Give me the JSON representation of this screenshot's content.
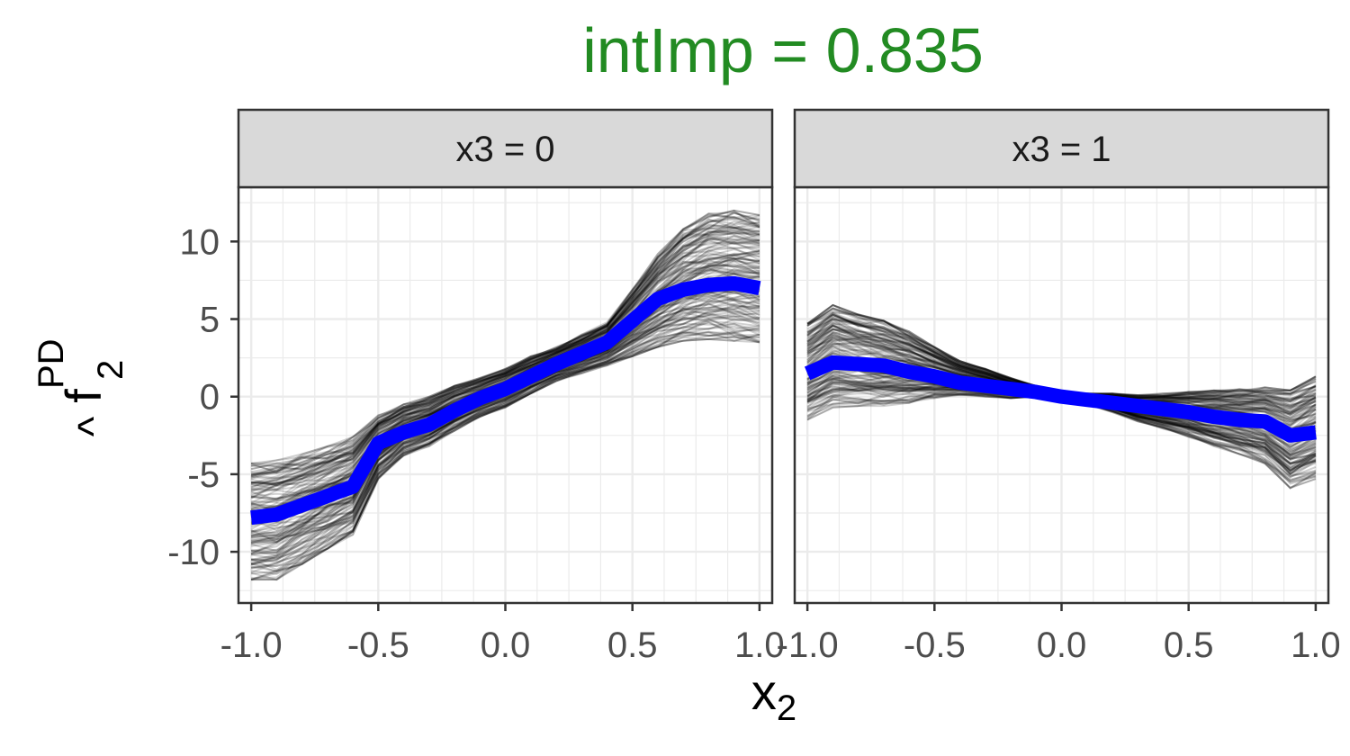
{
  "chart_data": {
    "type": "line",
    "title": "intImp = 0.835",
    "title_color": "#228B22",
    "xlabel_main": "x",
    "xlabel_sub": "2",
    "ylabel_hat": "^",
    "ylabel_main": "f",
    "ylabel_sub": "2",
    "ylabel_sup": "PD",
    "xlim": [
      -1.05,
      1.05
    ],
    "ylim": [
      -13.3,
      13.5
    ],
    "x_ticks": [
      -1.0,
      -0.5,
      0.0,
      0.5,
      1.0
    ],
    "x_tick_labels": [
      "-1.0",
      "-0.5",
      "0.0",
      "0.5",
      "1.0"
    ],
    "y_ticks": [
      -10,
      -5,
      0,
      5,
      10
    ],
    "y_tick_labels": [
      "-10",
      "-5",
      "0",
      "5",
      "10"
    ],
    "grid": true,
    "pd_color": "#0000FF",
    "ice_color": "#000000",
    "panels": [
      {
        "strip": "x3 = 0",
        "series": [
          {
            "type": "pd",
            "x": [
              -1.0,
              -0.9,
              -0.8,
              -0.7,
              -0.6,
              -0.5,
              -0.4,
              -0.3,
              -0.2,
              -0.1,
              0.0,
              0.1,
              0.2,
              0.3,
              0.4,
              0.5,
              0.6,
              0.7,
              0.8,
              0.9,
              1.0
            ],
            "y": [
              -7.8,
              -7.6,
              -7.0,
              -6.4,
              -5.8,
              -3.0,
              -2.3,
              -1.8,
              -0.9,
              -0.1,
              0.5,
              1.3,
              2.1,
              2.8,
              3.5,
              4.9,
              6.3,
              6.9,
              7.2,
              7.3,
              7.0
            ]
          },
          {
            "type": "ice",
            "x": [
              -1.0,
              -0.9,
              -0.8,
              -0.7,
              -0.6,
              -0.5,
              -0.4,
              -0.3,
              -0.2,
              -0.1,
              0.0,
              0.1,
              0.2,
              0.3,
              0.4,
              0.5,
              0.6,
              0.7,
              0.8,
              0.9,
              1.0
            ],
            "ylow": [
              -11.8,
              -11.8,
              -10.8,
              -9.8,
              -8.9,
              -5.3,
              -3.8,
              -3.2,
              -2.2,
              -1.3,
              -0.7,
              0.2,
              1.0,
              1.5,
              2.0,
              2.6,
              3.2,
              3.6,
              3.7,
              3.6,
              3.5
            ],
            "yhigh": [
              -4.3,
              -4.1,
              -3.7,
              -3.2,
              -2.6,
              -1.2,
              -0.5,
              0.0,
              0.7,
              1.2,
              1.8,
              2.6,
              3.2,
              4.0,
              4.8,
              6.9,
              9.2,
              10.8,
              11.8,
              12.0,
              11.7
            ]
          }
        ]
      },
      {
        "strip": "x3 = 1",
        "series": [
          {
            "type": "pd",
            "x": [
              -1.0,
              -0.9,
              -0.8,
              -0.7,
              -0.6,
              -0.5,
              -0.4,
              -0.3,
              -0.2,
              -0.1,
              0.0,
              0.1,
              0.2,
              0.3,
              0.4,
              0.5,
              0.6,
              0.7,
              0.8,
              0.9,
              1.0
            ],
            "y": [
              1.5,
              2.2,
              2.1,
              2.0,
              1.6,
              1.3,
              0.9,
              0.7,
              0.5,
              0.3,
              0.0,
              -0.2,
              -0.4,
              -0.6,
              -0.8,
              -1.0,
              -1.3,
              -1.5,
              -1.6,
              -2.5,
              -2.3
            ]
          },
          {
            "type": "ice",
            "x": [
              -1.0,
              -0.9,
              -0.8,
              -0.7,
              -0.6,
              -0.5,
              -0.4,
              -0.3,
              -0.2,
              -0.1,
              0.0,
              0.1,
              0.2,
              0.3,
              0.4,
              0.5,
              0.6,
              0.7,
              0.8,
              0.9,
              1.0
            ],
            "ylow": [
              -1.5,
              -0.7,
              -0.6,
              -0.6,
              -0.4,
              -0.1,
              0.1,
              0.0,
              -0.1,
              0.0,
              0.0,
              -0.5,
              -1.0,
              -1.6,
              -2.1,
              -2.6,
              -3.2,
              -3.7,
              -4.3,
              -5.9,
              -5.3
            ],
            "yhigh": [
              4.7,
              5.9,
              5.3,
              4.9,
              4.2,
              3.2,
              2.3,
              1.8,
              1.2,
              0.7,
              0.2,
              0.2,
              0.2,
              0.1,
              0.2,
              0.3,
              0.4,
              0.5,
              0.6,
              0.4,
              1.3
            ]
          }
        ]
      }
    ]
  }
}
